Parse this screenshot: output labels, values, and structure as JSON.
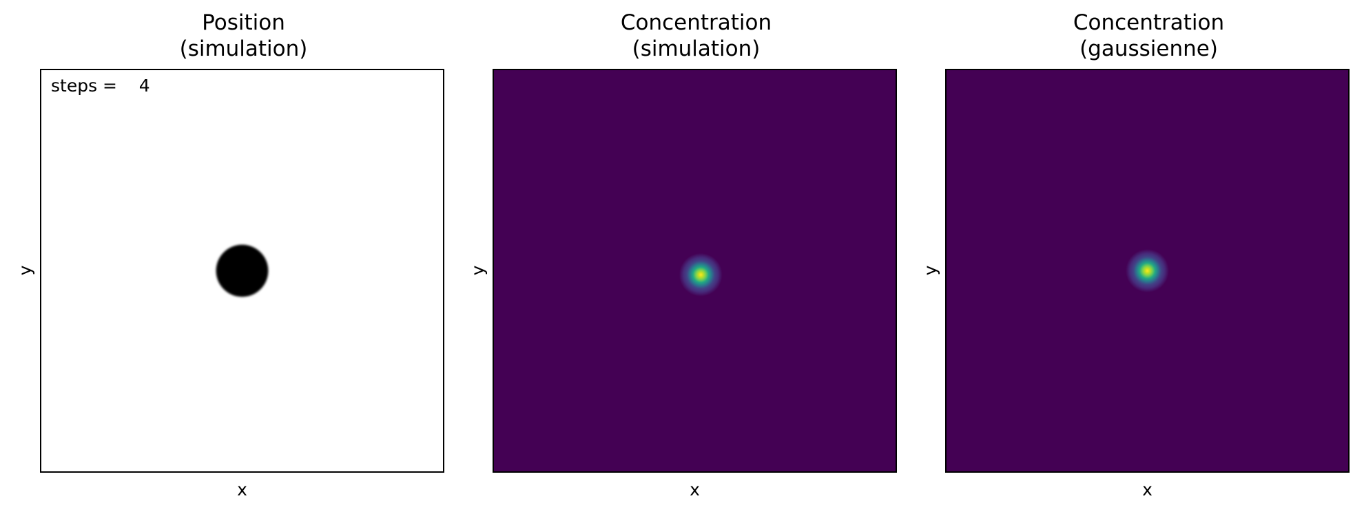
{
  "chart_data": [
    {
      "type": "scatter",
      "title": "Position\n(simulation)",
      "title_lines": [
        "Position",
        "(simulation)"
      ],
      "xlabel": "x",
      "ylabel": "y",
      "grid": false,
      "ticks": false,
      "annotation": {
        "label": "steps =",
        "value": "4"
      },
      "cluster": {
        "center": [
          0.0,
          0.0
        ],
        "radius": 0.13,
        "color": "#000000"
      }
    },
    {
      "type": "heatmap",
      "title": "Concentration\n(simulation)",
      "title_lines": [
        "Concentration",
        "(simulation)"
      ],
      "xlabel": "x",
      "ylabel": "y",
      "grid": false,
      "ticks": false,
      "colormap": "viridis",
      "background_color": "#440154",
      "peak_color": "#fde725",
      "peak": {
        "center": [
          0.03,
          -0.02
        ],
        "sigma": 0.045
      }
    },
    {
      "type": "heatmap",
      "title": "Concentration\n(gaussienne)",
      "title_lines": [
        "Concentration",
        "(gaussienne)"
      ],
      "xlabel": "x",
      "ylabel": "y",
      "grid": false,
      "ticks": false,
      "colormap": "viridis",
      "background_color": "#440154",
      "peak_color": "#fde725",
      "peak": {
        "center": [
          0.0,
          0.0
        ],
        "sigma": 0.045
      }
    }
  ]
}
